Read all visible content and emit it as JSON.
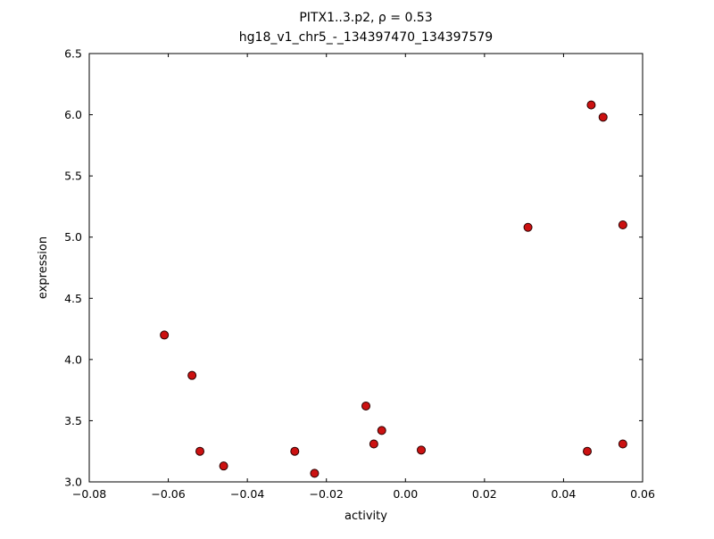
{
  "page": {
    "background": "#ffffff"
  },
  "chart_data": {
    "type": "scatter",
    "title_line1": "PITX1..3.p2, ρ = 0.53",
    "title_line2": "hg18_v1_chr5_-_134397470_134397579",
    "xlabel": "activity",
    "ylabel": "expression",
    "xlim": [
      -0.08,
      0.06
    ],
    "ylim": [
      3.0,
      6.5
    ],
    "xticks": [
      -0.08,
      -0.06,
      -0.04,
      -0.02,
      0.0,
      0.02,
      0.04,
      0.06
    ],
    "yticks": [
      3.0,
      3.5,
      4.0,
      4.5,
      5.0,
      5.5,
      6.0,
      6.5
    ],
    "grid": false,
    "legend": null,
    "marker": {
      "shape": "circle",
      "fill": "#cc1111",
      "edge": "#2a0000",
      "radius": 4.5
    },
    "frame_color": "#000000",
    "points": [
      [
        -0.061,
        4.2
      ],
      [
        -0.054,
        3.87
      ],
      [
        -0.052,
        3.25
      ],
      [
        -0.046,
        3.13
      ],
      [
        -0.028,
        3.25
      ],
      [
        -0.023,
        3.07
      ],
      [
        -0.01,
        3.62
      ],
      [
        -0.008,
        3.31
      ],
      [
        -0.006,
        3.42
      ],
      [
        0.004,
        3.26
      ],
      [
        0.031,
        5.08
      ],
      [
        0.046,
        3.25
      ],
      [
        0.047,
        6.08
      ],
      [
        0.05,
        5.98
      ],
      [
        0.055,
        5.1
      ],
      [
        0.055,
        3.31
      ]
    ]
  }
}
